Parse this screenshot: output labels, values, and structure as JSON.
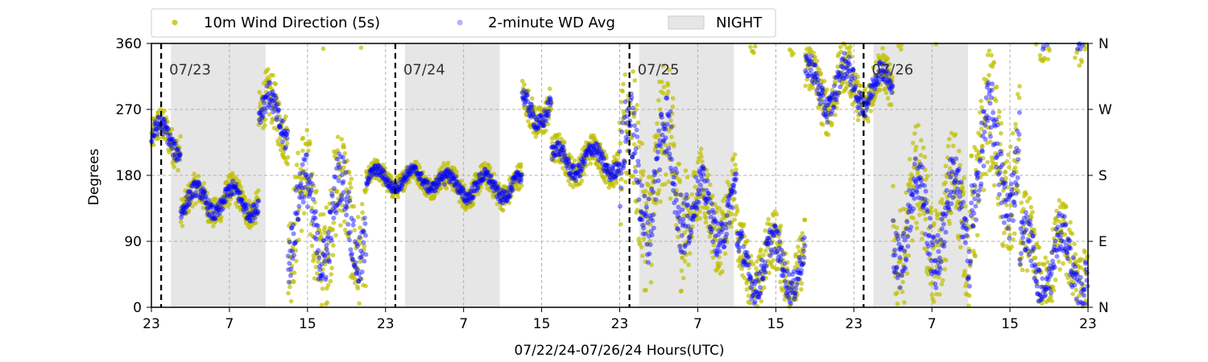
{
  "chart_data": {
    "type": "scatter",
    "xlabel": "07/22/24-07/26/24  Hours(UTC)",
    "ylabel": "Degrees",
    "x_range_hours": [
      0,
      96
    ],
    "x_ticks": [
      {
        "hour": 0,
        "label": "23"
      },
      {
        "hour": 8,
        "label": "7"
      },
      {
        "hour": 16,
        "label": "15"
      },
      {
        "hour": 24,
        "label": "23"
      },
      {
        "hour": 32,
        "label": "7"
      },
      {
        "hour": 40,
        "label": "15"
      },
      {
        "hour": 48,
        "label": "23"
      },
      {
        "hour": 56,
        "label": "7"
      },
      {
        "hour": 64,
        "label": "15"
      },
      {
        "hour": 72,
        "label": "23"
      },
      {
        "hour": 80,
        "label": "7"
      },
      {
        "hour": 88,
        "label": "15"
      },
      {
        "hour": 96,
        "label": "23"
      }
    ],
    "ylim": [
      0,
      360
    ],
    "y_ticks": [
      0,
      90,
      180,
      270,
      360
    ],
    "y_ticks_right": [
      "N",
      "E",
      "S",
      "W",
      "N"
    ],
    "grid": true,
    "legend_position": "top-left (above plot)",
    "legend": {
      "series1": "10m Wind Direction (5s)",
      "series2": "2-minute WD Avg",
      "night": "NIGHT"
    },
    "colors": {
      "series1": "#bfbf00",
      "series2": "#0000ff",
      "night": "#d9d9d9"
    },
    "day_dividers": [
      {
        "hour": 1,
        "label": "07/23"
      },
      {
        "hour": 25,
        "label": "07/24"
      },
      {
        "hour": 49,
        "label": "07/25"
      },
      {
        "hour": 73,
        "label": "07/26"
      }
    ],
    "night_spans_hours": [
      [
        2,
        11.7
      ],
      [
        26,
        35.7
      ],
      [
        50,
        59.7
      ],
      [
        74,
        83.7
      ]
    ],
    "series_profile": [
      {
        "from": 0,
        "to": 3,
        "center": 230,
        "spread": 40
      },
      {
        "from": 3,
        "to": 11,
        "center": 145,
        "spread": 35
      },
      {
        "from": 11,
        "to": 14,
        "center": 260,
        "spread": 60
      },
      {
        "from": 14,
        "to": 22,
        "center": 120,
        "spread": 120
      },
      {
        "from": 22,
        "to": 30,
        "center": 175,
        "spread": 25
      },
      {
        "from": 30,
        "to": 38,
        "center": 165,
        "spread": 30
      },
      {
        "from": 38,
        "to": 41,
        "center": 270,
        "spread": 40
      },
      {
        "from": 41,
        "to": 48,
        "center": 200,
        "spread": 35
      },
      {
        "from": 48,
        "to": 55,
        "center": 180,
        "spread": 150
      },
      {
        "from": 55,
        "to": 60,
        "center": 130,
        "spread": 80
      },
      {
        "from": 60,
        "to": 67,
        "center": 60,
        "spread": 70
      },
      {
        "from": 67,
        "to": 72,
        "center": 300,
        "spread": 60
      },
      {
        "from": 72,
        "to": 76,
        "center": 300,
        "spread": 50
      },
      {
        "from": 76,
        "to": 84,
        "center": 120,
        "spread": 120
      },
      {
        "from": 84,
        "to": 89,
        "center": 200,
        "spread": 140
      },
      {
        "from": 89,
        "to": 96,
        "center": 60,
        "spread": 90
      }
    ]
  }
}
